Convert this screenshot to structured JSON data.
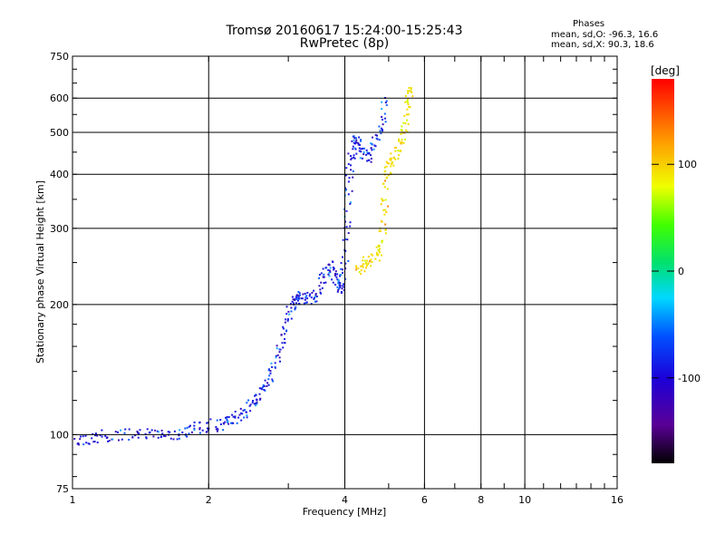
{
  "header": {
    "title_line1": "Tromsø 20160617 15:24:00-15:25:43",
    "title_line2": "RwPretec (8p)"
  },
  "phase_box": {
    "heading": "Phases",
    "line_o": "mean, sd,O: -96.3, 16.6",
    "line_x": "mean, sd,X:  90.3, 18.6"
  },
  "colorbar": {
    "unit": "[deg]",
    "ticks": [
      "100",
      "0",
      "-100"
    ],
    "tick_values": [
      100,
      0,
      -100
    ],
    "range": [
      -180,
      180
    ],
    "colormap": "rainbow (black-purple-blue-cyan-green-yellow-orange-red)"
  },
  "chart_data": {
    "type": "scatter",
    "title": "Tromsø 20160617 15:24:00-15:25:43",
    "subtitle": "RwPretec (8p)",
    "xlabel": "Frequency [MHz]",
    "ylabel": "Stationary phase Virtual Height [km]",
    "x_scale": "log",
    "y_scale": "log",
    "xlim": [
      1,
      16
    ],
    "ylim": [
      75,
      750
    ],
    "x_ticks": [
      1,
      2,
      4,
      6,
      8,
      10,
      16
    ],
    "x_tick_labels": [
      "1",
      "2",
      "4",
      "6",
      "8",
      "10",
      "16"
    ],
    "y_ticks": [
      75,
      100,
      200,
      300,
      400,
      500,
      600,
      750
    ],
    "y_tick_labels": [
      "75",
      "100",
      "200",
      "300",
      "400",
      "500",
      "600",
      "750"
    ],
    "grid": true,
    "series": [
      {
        "name": "O",
        "trace": [
          [
            1.0,
            97
          ],
          [
            1.1,
            99
          ],
          [
            1.2,
            100
          ],
          [
            1.35,
            100
          ],
          [
            1.5,
            101
          ],
          [
            1.65,
            101
          ],
          [
            1.8,
            103
          ],
          [
            1.95,
            105
          ],
          [
            2.1,
            106
          ],
          [
            2.25,
            108
          ],
          [
            2.35,
            112
          ],
          [
            2.5,
            118
          ],
          [
            2.6,
            125
          ],
          [
            2.7,
            135
          ],
          [
            2.8,
            150
          ],
          [
            2.9,
            170
          ],
          [
            3.0,
            195
          ],
          [
            3.1,
            205
          ],
          [
            3.2,
            210
          ],
          [
            3.3,
            205
          ],
          [
            3.45,
            210
          ],
          [
            3.6,
            235
          ],
          [
            3.7,
            250
          ],
          [
            3.8,
            230
          ],
          [
            3.9,
            218
          ],
          [
            3.95,
            230
          ],
          [
            4.0,
            280
          ],
          [
            4.05,
            360
          ],
          [
            4.1,
            430
          ],
          [
            4.2,
            490
          ],
          [
            4.3,
            460
          ],
          [
            4.45,
            440
          ],
          [
            4.6,
            460
          ],
          [
            4.8,
            520
          ],
          [
            4.9,
            600
          ]
        ],
        "mean_phase_deg": -96.3
      },
      {
        "name": "X",
        "trace": [
          [
            4.25,
            240
          ],
          [
            4.4,
            250
          ],
          [
            4.6,
            255
          ],
          [
            4.8,
            270
          ],
          [
            4.85,
            320
          ],
          [
            4.9,
            380
          ],
          [
            5.0,
            430
          ],
          [
            5.15,
            445
          ],
          [
            5.3,
            470
          ],
          [
            5.4,
            520
          ],
          [
            5.5,
            600
          ],
          [
            5.55,
            640
          ]
        ],
        "mean_phase_deg": 90.3
      }
    ]
  }
}
